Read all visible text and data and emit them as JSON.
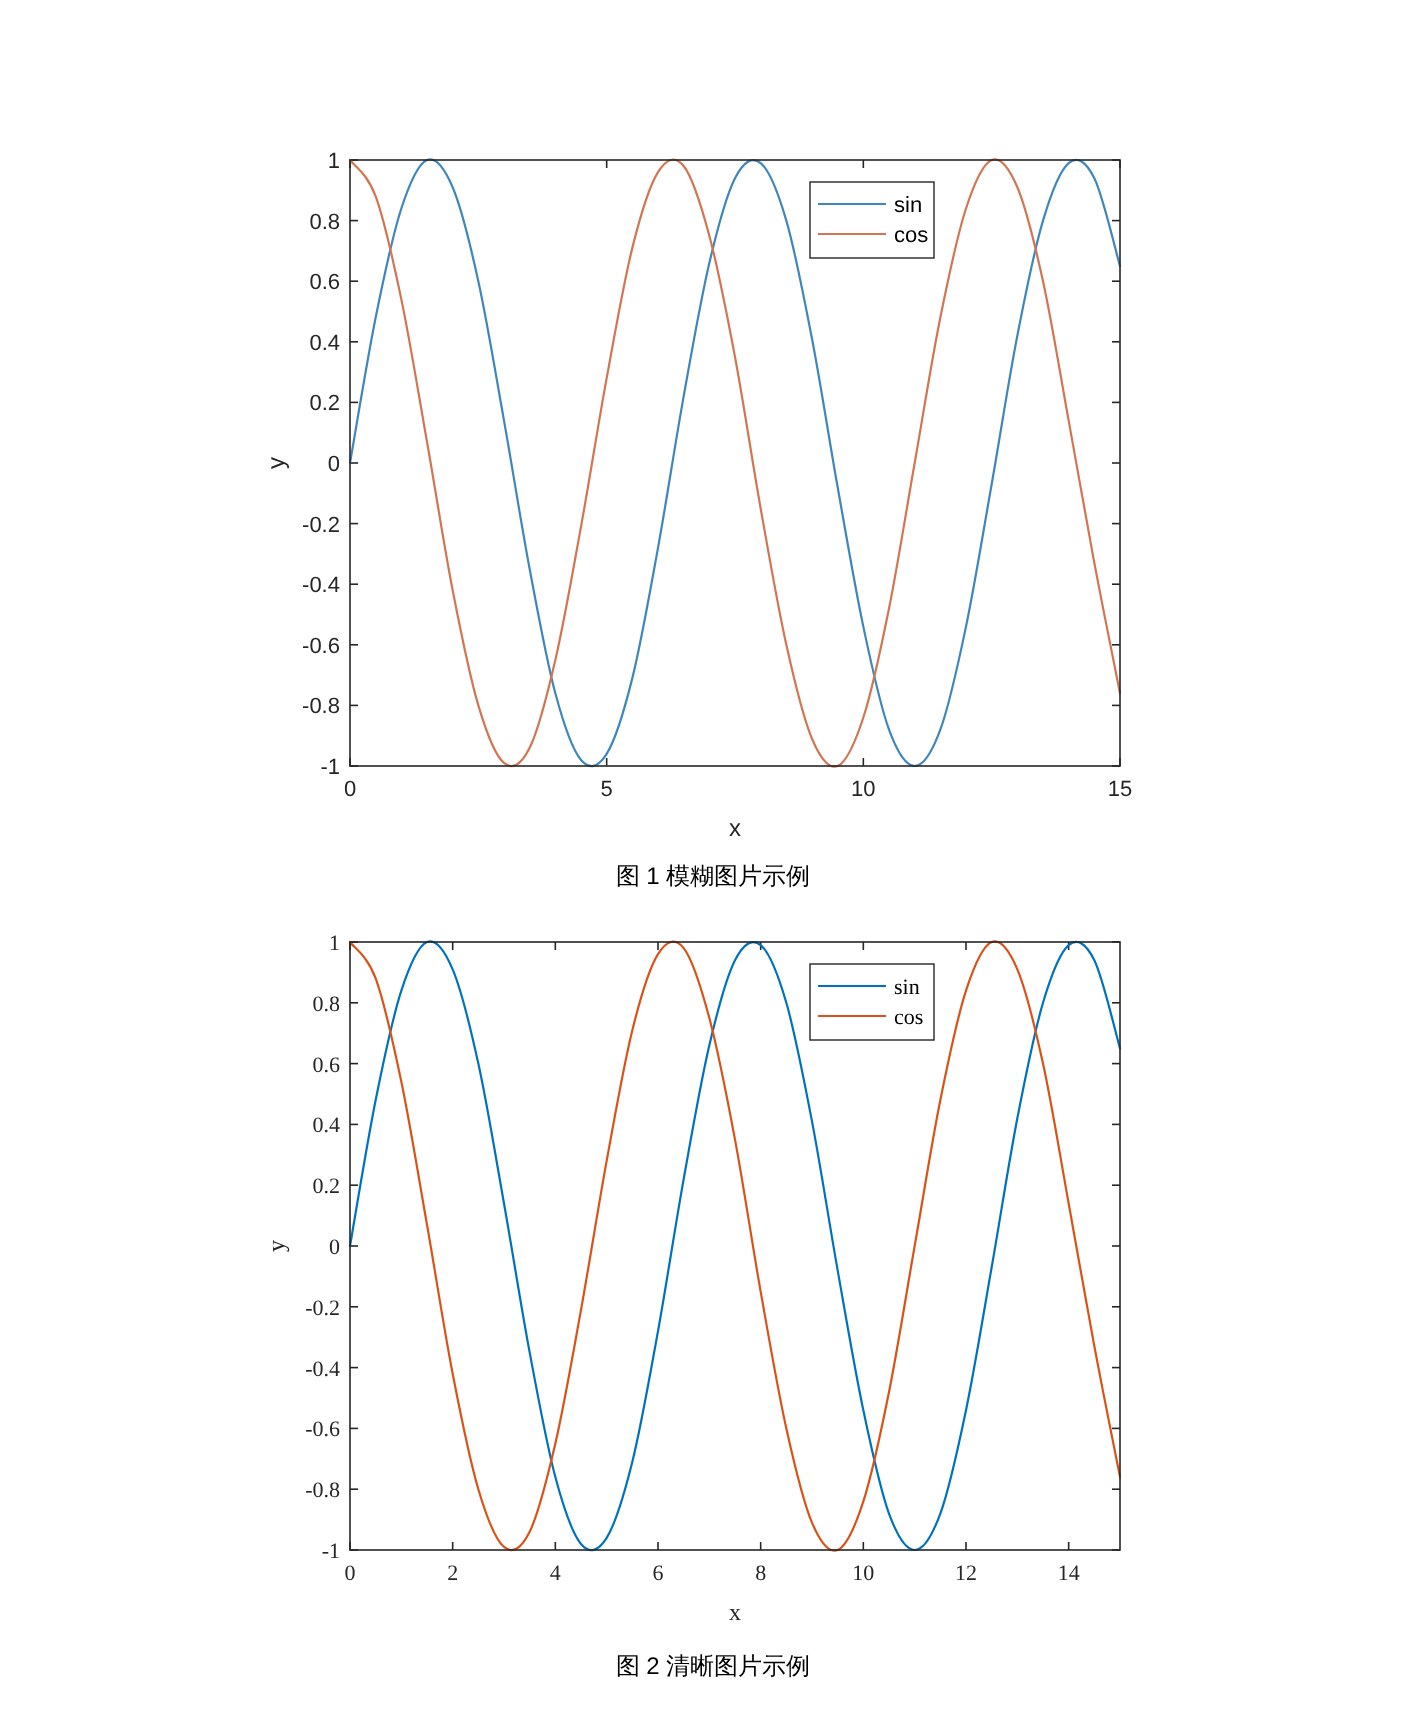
{
  "chart_data": [
    {
      "type": "line",
      "xlabel": "x",
      "ylabel": "y",
      "annotations": [
        "图 1 模糊图片示例"
      ],
      "xlim": [
        0,
        15
      ],
      "ylim": [
        -1,
        1
      ],
      "xticks": [
        0,
        5,
        10,
        15
      ],
      "yticks": [
        -1,
        -0.8,
        -0.6,
        -0.4,
        -0.2,
        0,
        0.2,
        0.4,
        0.6,
        0.8,
        1
      ],
      "grid": false,
      "legend": "top right",
      "marker": "none",
      "line_style": "solid",
      "x": [
        0,
        0.5,
        1,
        1.5,
        2,
        2.5,
        3,
        3.5,
        4,
        4.5,
        5,
        5.5,
        6,
        6.5,
        7,
        7.5,
        8,
        8.5,
        9,
        9.5,
        10,
        10.5,
        11,
        11.5,
        12,
        12.5,
        13,
        13.5,
        14,
        14.5,
        15
      ],
      "series": [
        {
          "name": "sin",
          "color": "#3f86bd",
          "values": [
            0,
            0.48,
            0.84,
            1.0,
            0.91,
            0.6,
            0.14,
            -0.35,
            -0.76,
            -0.98,
            -0.96,
            -0.71,
            -0.28,
            0.22,
            0.66,
            0.94,
            0.99,
            0.8,
            0.41,
            -0.08,
            -0.54,
            -0.88,
            -1.0,
            -0.88,
            -0.54,
            -0.07,
            0.42,
            0.8,
            0.99,
            0.94,
            0.65
          ]
        },
        {
          "name": "cos",
          "color": "#d27552",
          "values": [
            1,
            0.88,
            0.54,
            0.07,
            -0.42,
            -0.8,
            -0.99,
            -0.94,
            -0.65,
            -0.21,
            0.28,
            0.71,
            0.96,
            0.98,
            0.75,
            0.35,
            -0.15,
            -0.6,
            -0.91,
            -1.0,
            -0.84,
            -0.48,
            0.0,
            0.48,
            0.84,
            1.0,
            0.91,
            0.6,
            0.14,
            -0.33,
            -0.76
          ]
        }
      ]
    },
    {
      "type": "line",
      "xlabel": "x",
      "ylabel": "y",
      "annotations": [
        "图 2 清晰图片示例"
      ],
      "xlim": [
        0,
        15
      ],
      "ylim": [
        -1,
        1
      ],
      "xticks": [
        0,
        2,
        4,
        6,
        8,
        10,
        12,
        14
      ],
      "yticks": [
        -1,
        -0.8,
        -0.6,
        -0.4,
        -0.2,
        0,
        0.2,
        0.4,
        0.6,
        0.8,
        1
      ],
      "grid": false,
      "legend": "top right",
      "marker": "none",
      "line_style": "solid",
      "x": [
        0,
        0.5,
        1,
        1.5,
        2,
        2.5,
        3,
        3.5,
        4,
        4.5,
        5,
        5.5,
        6,
        6.5,
        7,
        7.5,
        8,
        8.5,
        9,
        9.5,
        10,
        10.5,
        11,
        11.5,
        12,
        12.5,
        13,
        13.5,
        14,
        14.5,
        15
      ],
      "series": [
        {
          "name": "sin",
          "color": "#0072bd",
          "values": [
            0,
            0.48,
            0.84,
            1.0,
            0.91,
            0.6,
            0.14,
            -0.35,
            -0.76,
            -0.98,
            -0.96,
            -0.71,
            -0.28,
            0.22,
            0.66,
            0.94,
            0.99,
            0.8,
            0.41,
            -0.08,
            -0.54,
            -0.88,
            -1.0,
            -0.88,
            -0.54,
            -0.07,
            0.42,
            0.8,
            0.99,
            0.94,
            0.65
          ]
        },
        {
          "name": "cos",
          "color": "#d95319",
          "values": [
            1,
            0.88,
            0.54,
            0.07,
            -0.42,
            -0.8,
            -0.99,
            -0.94,
            -0.65,
            -0.21,
            0.28,
            0.71,
            0.96,
            0.98,
            0.75,
            0.35,
            -0.15,
            -0.6,
            -0.91,
            -1.0,
            -0.84,
            -0.48,
            0.0,
            0.48,
            0.84,
            1.0,
            0.91,
            0.6,
            0.14,
            -0.33,
            -0.76
          ]
        }
      ]
    }
  ]
}
